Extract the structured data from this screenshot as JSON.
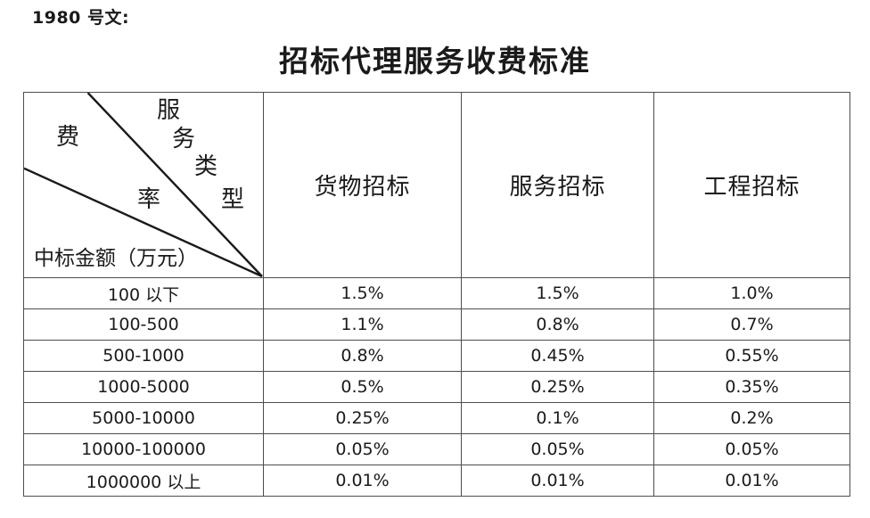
{
  "doc_label": "1980 号文:",
  "title": "招标代理服务收费标准",
  "table": {
    "corner": {
      "service_type_chars": [
        "服",
        "务",
        "类",
        "型"
      ],
      "fee_rate_chars": [
        "费",
        "率"
      ],
      "amount_axis_label": "中标金额（万元）"
    },
    "column_headers": [
      "货物招标",
      "服务招标",
      "工程招标"
    ],
    "rows": [
      {
        "range": "100 以下",
        "values": [
          "1.5%",
          "1.5%",
          "1.0%"
        ]
      },
      {
        "range": "100-500",
        "values": [
          "1.1%",
          "0.8%",
          "0.7%"
        ]
      },
      {
        "range": "500-1000",
        "values": [
          "0.8%",
          "0.45%",
          "0.55%"
        ]
      },
      {
        "range": "1000-5000",
        "values": [
          "0.5%",
          "0.25%",
          "0.35%"
        ]
      },
      {
        "range": "5000-10000",
        "values": [
          "0.25%",
          "0.1%",
          "0.2%"
        ]
      },
      {
        "range": "10000-100000",
        "values": [
          "0.05%",
          "0.05%",
          "0.05%"
        ]
      },
      {
        "range": "1000000 以上",
        "values": [
          "0.01%",
          "0.01%",
          "0.01%"
        ]
      }
    ]
  },
  "colors": {
    "text": "#1a1a1a",
    "table_border": "#4d4d4d",
    "diagonal_line": "#1a1a1a",
    "background": "#ffffff"
  }
}
